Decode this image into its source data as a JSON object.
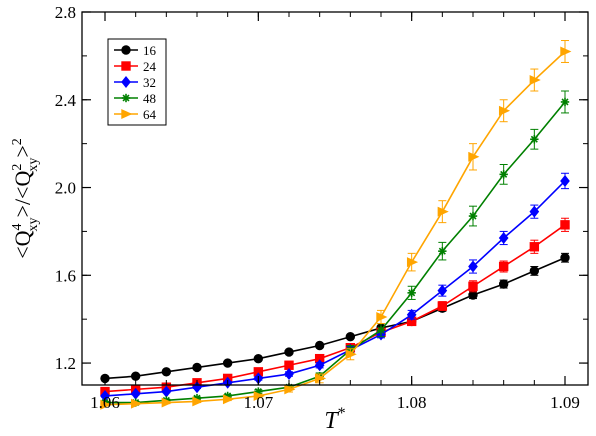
{
  "chart_data": {
    "type": "line",
    "xlabel": "T",
    "xlabel_sup": "*",
    "ylabel": "<Q_xy^4>/<Q_xy^2>^2",
    "xlim": [
      1.0585,
      1.0915
    ],
    "ylim": [
      1.1,
      2.8
    ],
    "xticks": [
      1.06,
      1.07,
      1.08,
      1.09
    ],
    "xtick_labels": [
      "1.06",
      "1.07",
      "1.08",
      "1.09"
    ],
    "yticks": [
      1.2,
      1.6,
      2.0,
      2.4,
      2.8
    ],
    "ytick_labels": [
      "1.2",
      "1.6",
      "2.0",
      "2.4",
      "2.8"
    ],
    "x": [
      1.06,
      1.062,
      1.064,
      1.066,
      1.068,
      1.07,
      1.072,
      1.074,
      1.076,
      1.078,
      1.08,
      1.082,
      1.084,
      1.086,
      1.088,
      1.09
    ],
    "legend_position": "top-left",
    "grid": false,
    "series": [
      {
        "name": "16",
        "color": "#000000",
        "marker": "circle",
        "values": [
          1.13,
          1.14,
          1.16,
          1.18,
          1.2,
          1.22,
          1.25,
          1.28,
          1.32,
          1.36,
          1.39,
          1.45,
          1.51,
          1.56,
          1.62,
          1.68
        ],
        "errors": [
          0.005,
          0.005,
          0.005,
          0.005,
          0.005,
          0.005,
          0.006,
          0.006,
          0.008,
          0.01,
          0.012,
          0.014,
          0.016,
          0.018,
          0.02,
          0.02
        ]
      },
      {
        "name": "24",
        "color": "#ff0000",
        "marker": "square",
        "values": [
          1.07,
          1.08,
          1.09,
          1.11,
          1.13,
          1.16,
          1.19,
          1.22,
          1.27,
          1.34,
          1.39,
          1.46,
          1.55,
          1.64,
          1.73,
          1.83
        ],
        "errors": [
          0.005,
          0.005,
          0.005,
          0.005,
          0.006,
          0.006,
          0.008,
          0.01,
          0.012,
          0.015,
          0.015,
          0.02,
          0.025,
          0.025,
          0.03,
          0.03
        ]
      },
      {
        "name": "32",
        "color": "#0000ff",
        "marker": "diamond",
        "values": [
          1.05,
          1.06,
          1.07,
          1.09,
          1.11,
          1.13,
          1.15,
          1.19,
          1.26,
          1.33,
          1.42,
          1.53,
          1.64,
          1.77,
          1.89,
          2.03
        ],
        "errors": [
          0.005,
          0.005,
          0.005,
          0.006,
          0.006,
          0.008,
          0.01,
          0.012,
          0.015,
          0.015,
          0.02,
          0.025,
          0.03,
          0.03,
          0.03,
          0.035
        ]
      },
      {
        "name": "48",
        "color": "#008000",
        "marker": "star",
        "values": [
          1.02,
          1.02,
          1.03,
          1.04,
          1.05,
          1.07,
          1.09,
          1.14,
          1.26,
          1.35,
          1.52,
          1.71,
          1.87,
          2.06,
          2.22,
          2.39
        ],
        "errors": [
          0.005,
          0.005,
          0.005,
          0.005,
          0.006,
          0.008,
          0.01,
          0.015,
          0.02,
          0.03,
          0.03,
          0.04,
          0.045,
          0.045,
          0.045,
          0.05
        ]
      },
      {
        "name": "64",
        "color": "#ffa500",
        "marker": "triangle-right",
        "values": [
          1.01,
          1.015,
          1.02,
          1.025,
          1.035,
          1.05,
          1.08,
          1.13,
          1.24,
          1.41,
          1.66,
          1.89,
          2.14,
          2.35,
          2.49,
          2.62
        ],
        "errors": [
          0.005,
          0.005,
          0.005,
          0.005,
          0.006,
          0.008,
          0.012,
          0.02,
          0.025,
          0.03,
          0.04,
          0.05,
          0.06,
          0.05,
          0.05,
          0.05
        ]
      }
    ]
  }
}
